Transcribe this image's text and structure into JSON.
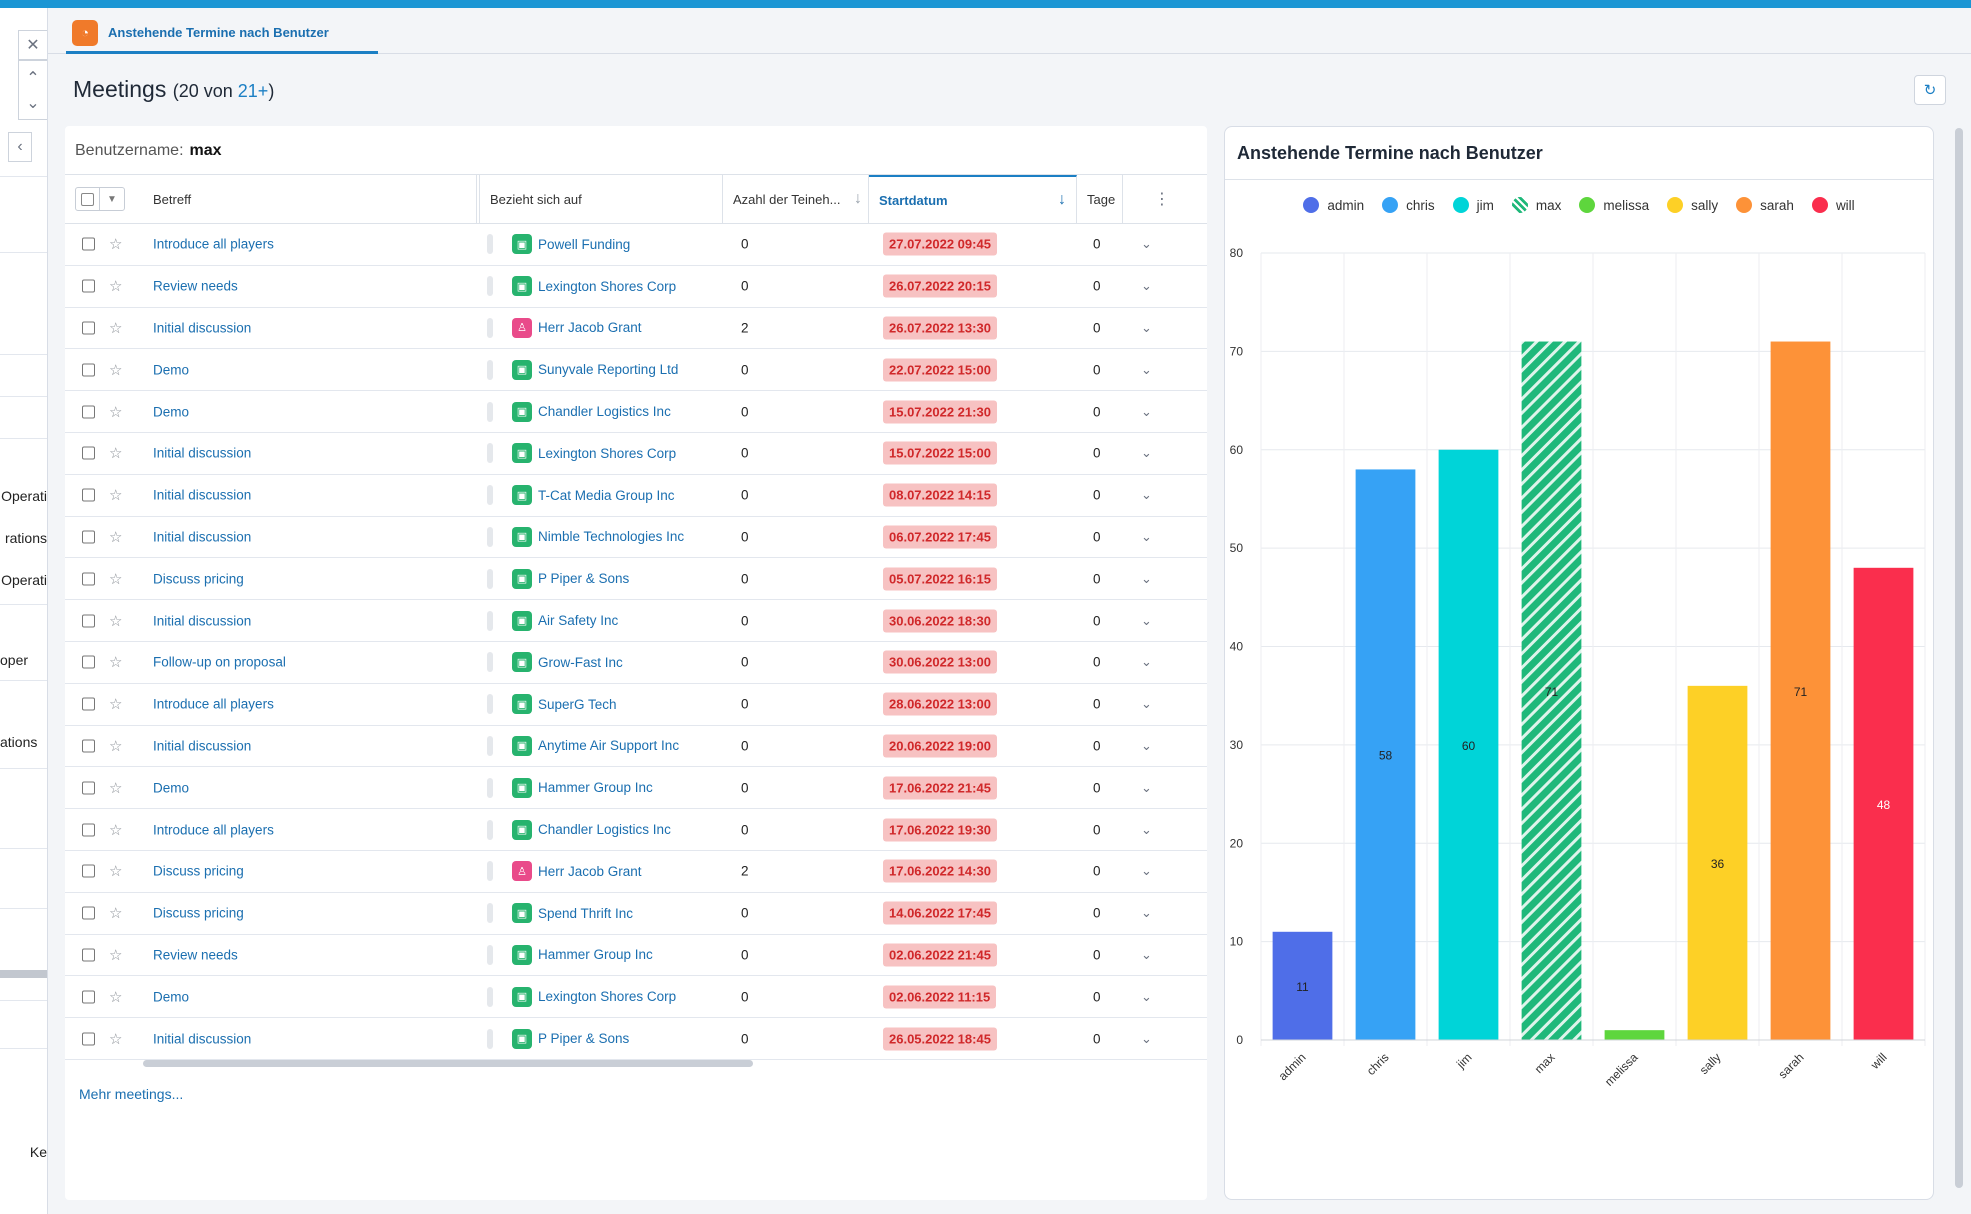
{
  "tab": {
    "label": "Anstehende Termine nach Benutzer"
  },
  "page": {
    "title": "Meetings",
    "count_prefix": "(20 von ",
    "count_link": "21+",
    "count_suffix": ")"
  },
  "filter": {
    "label": "Benutzername:",
    "value": "max"
  },
  "left_fragments": [
    "Operati",
    "rations",
    "Operati",
    "oper",
    "ations",
    "Ke"
  ],
  "columns": {
    "subject": "Betreff",
    "related": "Bezieht sich auf",
    "participants": "Azahl der Teineh...",
    "start": "Startdatum",
    "days": "Tage"
  },
  "rows": [
    {
      "subject": "Introduce all players",
      "related": "Powell Funding",
      "type": "account",
      "count": "0",
      "date": "27.07.2022 09:45",
      "days": "0"
    },
    {
      "subject": "Review needs",
      "related": "Lexington Shores Corp",
      "type": "account",
      "count": "0",
      "date": "26.07.2022 20:15",
      "days": "0"
    },
    {
      "subject": "Initial discussion",
      "related": "Herr Jacob Grant",
      "type": "contact",
      "count": "2",
      "date": "26.07.2022 13:30",
      "days": "0"
    },
    {
      "subject": "Demo",
      "related": "Sunyvale Reporting Ltd",
      "type": "account",
      "count": "0",
      "date": "22.07.2022 15:00",
      "days": "0"
    },
    {
      "subject": "Demo",
      "related": "Chandler Logistics Inc",
      "type": "account",
      "count": "0",
      "date": "15.07.2022 21:30",
      "days": "0"
    },
    {
      "subject": "Initial discussion",
      "related": "Lexington Shores Corp",
      "type": "account",
      "count": "0",
      "date": "15.07.2022 15:00",
      "days": "0"
    },
    {
      "subject": "Initial discussion",
      "related": "T-Cat Media Group Inc",
      "type": "account",
      "count": "0",
      "date": "08.07.2022 14:15",
      "days": "0"
    },
    {
      "subject": "Initial discussion",
      "related": "Nimble Technologies Inc",
      "type": "account",
      "count": "0",
      "date": "06.07.2022 17:45",
      "days": "0"
    },
    {
      "subject": "Discuss pricing",
      "related": "P Piper & Sons",
      "type": "account",
      "count": "0",
      "date": "05.07.2022 16:15",
      "days": "0"
    },
    {
      "subject": "Initial discussion",
      "related": "Air Safety Inc",
      "type": "account",
      "count": "0",
      "date": "30.06.2022 18:30",
      "days": "0"
    },
    {
      "subject": "Follow-up on proposal",
      "related": "Grow-Fast Inc",
      "type": "account",
      "count": "0",
      "date": "30.06.2022 13:00",
      "days": "0"
    },
    {
      "subject": "Introduce all players",
      "related": "SuperG Tech",
      "type": "account",
      "count": "0",
      "date": "28.06.2022 13:00",
      "days": "0"
    },
    {
      "subject": "Initial discussion",
      "related": "Anytime Air Support Inc",
      "type": "account",
      "count": "0",
      "date": "20.06.2022 19:00",
      "days": "0"
    },
    {
      "subject": "Demo",
      "related": "Hammer Group Inc",
      "type": "account",
      "count": "0",
      "date": "17.06.2022 21:45",
      "days": "0"
    },
    {
      "subject": "Introduce all players",
      "related": "Chandler Logistics Inc",
      "type": "account",
      "count": "0",
      "date": "17.06.2022 19:30",
      "days": "0"
    },
    {
      "subject": "Discuss pricing",
      "related": "Herr Jacob Grant",
      "type": "contact",
      "count": "2",
      "date": "17.06.2022 14:30",
      "days": "0"
    },
    {
      "subject": "Discuss pricing",
      "related": "Spend Thrift Inc",
      "type": "account",
      "count": "0",
      "date": "14.06.2022 17:45",
      "days": "0"
    },
    {
      "subject": "Review needs",
      "related": "Hammer Group Inc",
      "type": "account",
      "count": "0",
      "date": "02.06.2022 21:45",
      "days": "0"
    },
    {
      "subject": "Demo",
      "related": "Lexington Shores Corp",
      "type": "account",
      "count": "0",
      "date": "02.06.2022 11:15",
      "days": "0"
    },
    {
      "subject": "Initial discussion",
      "related": "P Piper & Sons",
      "type": "account",
      "count": "0",
      "date": "26.05.2022 18:45",
      "days": "0"
    }
  ],
  "more_link": "Mehr meetings...",
  "chart_data": {
    "type": "bar",
    "title": "Anstehende Termine nach Benutzer",
    "categories": [
      "admin",
      "chris",
      "jim",
      "max",
      "melissa",
      "sally",
      "sarah",
      "will"
    ],
    "values": [
      11,
      58,
      60,
      71,
      1,
      36,
      71,
      48
    ],
    "data_labels": [
      "11",
      "58",
      "60",
      "71",
      "",
      "36",
      "71",
      "48"
    ],
    "colors": [
      "#4f6ee8",
      "#36a2f5",
      "#00d4d8",
      "#1fb87a",
      "#5ed63d",
      "#fdd026",
      "#fd9238",
      "#fa2e4d"
    ],
    "highlighted": "max",
    "ylim": [
      0,
      80
    ],
    "yticks": [
      0,
      10,
      20,
      30,
      40,
      50,
      60,
      70,
      80
    ],
    "legend_position": "top-center",
    "grid": true
  }
}
